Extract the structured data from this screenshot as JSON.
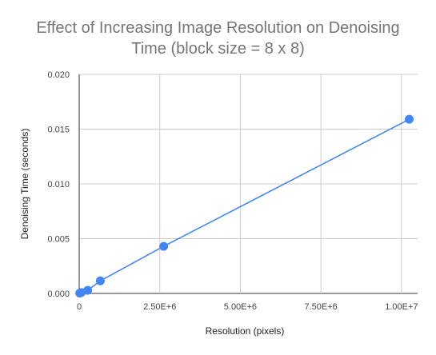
{
  "chart_data": {
    "type": "scatter",
    "title": "Effect of Increasing Image Resolution on Denoising Time (block size = 8 x 8)",
    "title_lines": [
      "Effect of Increasing Image Resolution on Denoising",
      "Time (block size = 8 x 8)"
    ],
    "xlabel": "Resolution (pixels)",
    "ylabel": "Denoising Time (seconds)",
    "xlim": [
      0,
      10500000
    ],
    "ylim": [
      0,
      0.02
    ],
    "x_ticks": [
      0,
      2500000,
      5000000,
      7500000,
      10000000
    ],
    "x_tick_labels": [
      "0",
      "2.50E+6",
      "5.00E+6",
      "7.50E+6",
      "1.00E+7"
    ],
    "y_ticks": [
      0,
      0.005,
      0.01,
      0.015,
      0.02
    ],
    "y_tick_labels": [
      "0.000",
      "0.005",
      "0.010",
      "0.015",
      "0.020"
    ],
    "grid": true,
    "trendline": true,
    "series": [
      {
        "color": "#4285f4",
        "x": [
          16384,
          65536,
          262144,
          655360,
          2621440,
          10240000
        ],
        "y": [
          3e-05,
          8e-05,
          0.00028,
          0.00115,
          0.0043,
          0.0159
        ]
      }
    ]
  }
}
